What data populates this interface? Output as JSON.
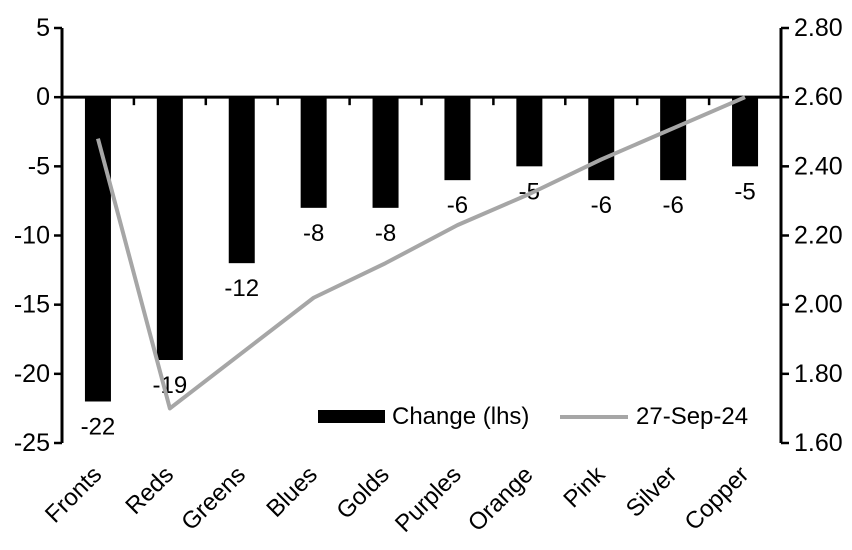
{
  "colors": {
    "bar": "#000000",
    "line": "#a6a6a6",
    "axis": "#000000",
    "text": "#000000",
    "background": "#ffffff"
  },
  "chart_data": {
    "type": "bar",
    "subtype": "bar-line-combo-dual-axis",
    "title": "",
    "categories": [
      "Fronts",
      "Reds",
      "Greens",
      "Blues",
      "Golds",
      "Purples",
      "Orange",
      "Pink",
      "Silver",
      "Copper"
    ],
    "series": [
      {
        "name": "Change (lhs)",
        "type": "bar",
        "axis": "left",
        "color": "#000000",
        "values": [
          -22,
          -19,
          -12,
          -8,
          -8,
          -6,
          -5,
          -6,
          -6,
          -5
        ],
        "data_labels": [
          "-22",
          "-19",
          "-12",
          "-8",
          "-8",
          "-6",
          "-5",
          "-6",
          "-6",
          "-5"
        ]
      },
      {
        "name": "27-Sep-24",
        "type": "line",
        "axis": "right",
        "color": "#a6a6a6",
        "values": [
          2.48,
          1.7,
          1.86,
          2.02,
          2.12,
          2.23,
          2.32,
          2.42,
          2.51,
          2.6
        ]
      }
    ],
    "left_axis": {
      "min": -25,
      "max": 5,
      "step": 5,
      "ticks": [
        "5",
        "0",
        "-5",
        "-10",
        "-15",
        "-20",
        "-25"
      ]
    },
    "right_axis": {
      "min": 1.6,
      "max": 2.8,
      "step": 0.2,
      "ticks": [
        "2.80",
        "2.60",
        "2.40",
        "2.20",
        "2.00",
        "1.80",
        "1.60"
      ]
    },
    "legend": [
      {
        "label": "Change (lhs)",
        "swatch": "bar"
      },
      {
        "label": "27-Sep-24",
        "swatch": "line"
      }
    ],
    "grid": false,
    "legend_position": "inside-bottom-center",
    "x_labels_rotation_deg": -45
  }
}
